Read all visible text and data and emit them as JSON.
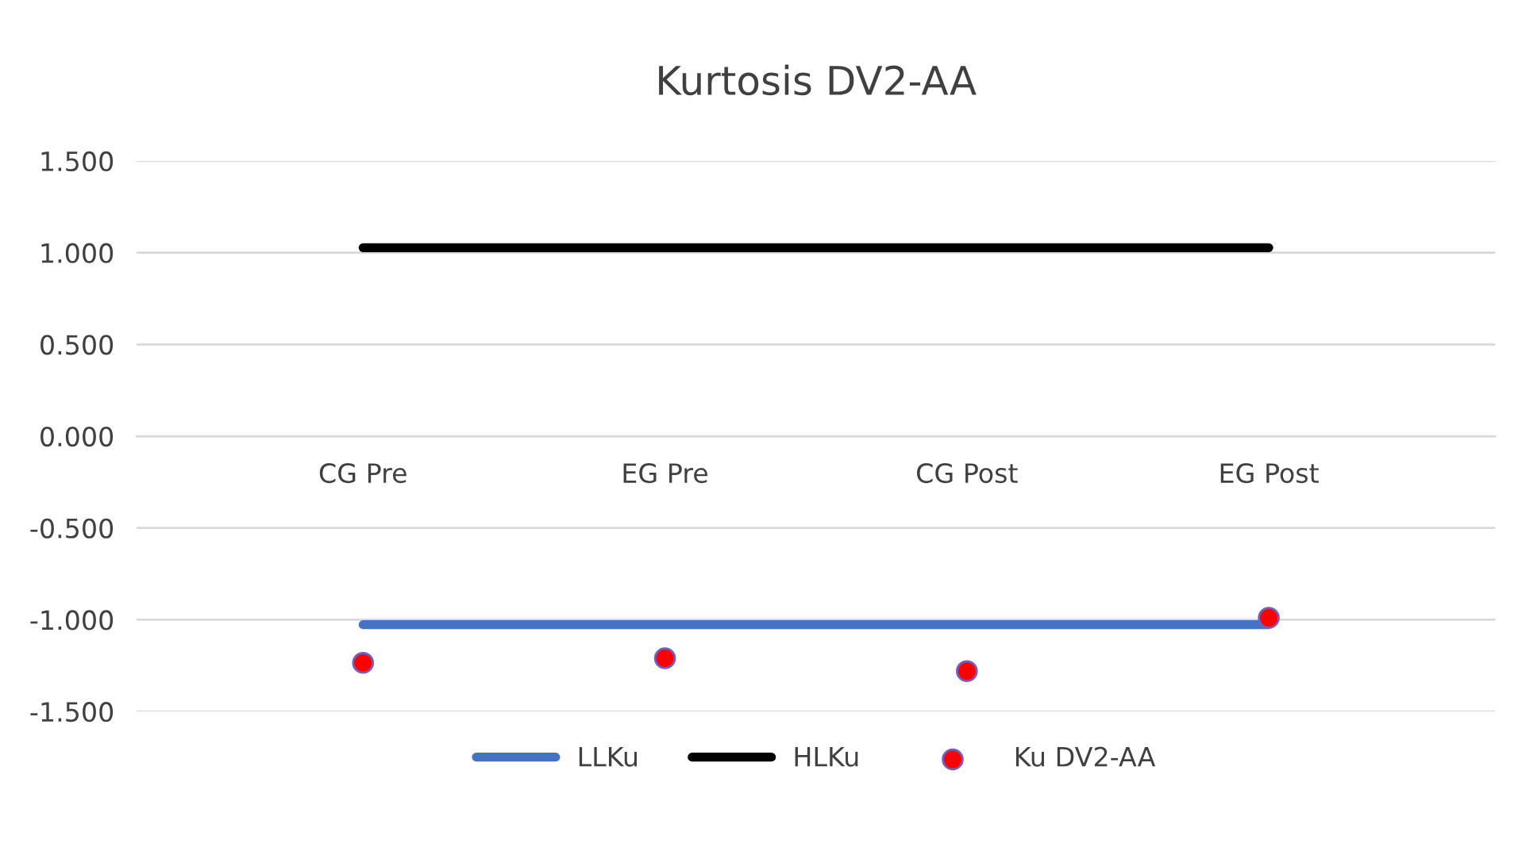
{
  "chart_data": {
    "type": "line",
    "title": "Kurtosis DV2-AA",
    "categories": [
      "CG Pre",
      "EG Pre",
      "CG Post",
      "EG Post"
    ],
    "series": [
      {
        "name": "LLKu",
        "color": "#4472c4",
        "values": [
          -1.027,
          -1.027,
          -1.027,
          -1.027
        ]
      },
      {
        "name": "HLKu",
        "color": "#000000",
        "values": [
          1.027,
          1.027,
          1.027,
          1.027
        ]
      },
      {
        "name": "Ku DV2-AA",
        "type": "scatter",
        "color": "#ff0000",
        "values": [
          -1.235,
          -1.21,
          -1.28,
          -0.99
        ]
      }
    ],
    "ylim": [
      -1.5,
      1.5
    ],
    "yticks": [
      {
        "value": -1.5,
        "label": "-1.500"
      },
      {
        "value": -1.0,
        "label": "-1.000"
      },
      {
        "value": -0.5,
        "label": "-0.500"
      },
      {
        "value": 0,
        "label": "0.000"
      },
      {
        "value": 0.5,
        "label": "0.500"
      },
      {
        "value": 1.0,
        "label": "1.000"
      },
      {
        "value": 1.5,
        "label": "1.500"
      }
    ],
    "grid": "y",
    "legend": "bottom"
  }
}
